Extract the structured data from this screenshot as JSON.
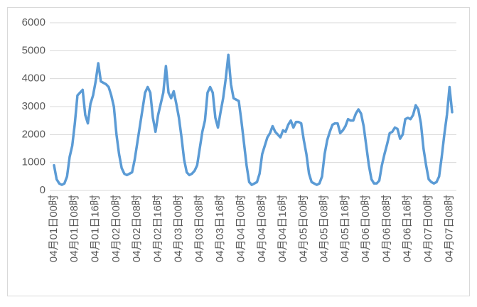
{
  "chart_data": {
    "type": "line",
    "categories": [
      "04月01日00时",
      null,
      null,
      null,
      null,
      null,
      null,
      null,
      "04月01日08时",
      null,
      null,
      null,
      null,
      null,
      null,
      null,
      "04月01日16时",
      null,
      null,
      null,
      null,
      null,
      null,
      null,
      "04月02日00时",
      null,
      null,
      null,
      null,
      null,
      null,
      null,
      "04月02日08时",
      null,
      null,
      null,
      null,
      null,
      null,
      null,
      "04月02日16时",
      null,
      null,
      null,
      null,
      null,
      null,
      null,
      "04月03日00时",
      null,
      null,
      null,
      null,
      null,
      null,
      null,
      "04月03日08时",
      null,
      null,
      null,
      null,
      null,
      null,
      null,
      "04月03日16时",
      null,
      null,
      null,
      null,
      null,
      null,
      null,
      "04月04日00时",
      null,
      null,
      null,
      null,
      null,
      null,
      null,
      "04月04日08时",
      null,
      null,
      null,
      null,
      null,
      null,
      null,
      "04月04日16时",
      null,
      null,
      null,
      null,
      null,
      null,
      null,
      "04月05日00时",
      null,
      null,
      null,
      null,
      null,
      null,
      null,
      "04月05日08时",
      null,
      null,
      null,
      null,
      null,
      null,
      null,
      "04月05日16时",
      null,
      null,
      null,
      null,
      null,
      null,
      null,
      "04月06日00时",
      null,
      null,
      null,
      null,
      null,
      null,
      null,
      "04月06日08时",
      null,
      null,
      null,
      null,
      null,
      null,
      null,
      "04月06日16时",
      null,
      null,
      null,
      null,
      null,
      null,
      null,
      "04月07日00时",
      null,
      null,
      null,
      null,
      null,
      null,
      null,
      "04月07日08时",
      null
    ],
    "values": [
      900,
      400,
      250,
      200,
      250,
      500,
      1200,
      1600,
      2400,
      3400,
      3500,
      3600,
      2700,
      2400,
      3100,
      3400,
      3900,
      4550,
      3900,
      3850,
      3800,
      3700,
      3400,
      3000,
      2000,
      1300,
      800,
      600,
      550,
      600,
      650,
      1100,
      1700,
      2300,
      2900,
      3500,
      3700,
      3500,
      2600,
      2100,
      2700,
      3100,
      3500,
      4450,
      3500,
      3300,
      3550,
      3100,
      2600,
      1900,
      1100,
      650,
      550,
      600,
      700,
      900,
      1500,
      2100,
      2500,
      3500,
      3700,
      3500,
      2600,
      2250,
      2800,
      3300,
      4000,
      4850,
      3800,
      3300,
      3250,
      3200,
      2500,
      1700,
      900,
      300,
      200,
      250,
      300,
      600,
      1300,
      1600,
      1900,
      2050,
      2300,
      2100,
      2000,
      1900,
      2150,
      2100,
      2350,
      2500,
      2250,
      2450,
      2450,
      2400,
      1800,
      1300,
      600,
      300,
      250,
      200,
      250,
      500,
      1300,
      1800,
      2100,
      2350,
      2400,
      2400,
      2050,
      2150,
      2300,
      2550,
      2500,
      2500,
      2750,
      2900,
      2750,
      2300,
      1600,
      900,
      400,
      250,
      250,
      350,
      900,
      1300,
      1650,
      2050,
      2100,
      2250,
      2200,
      1850,
      2000,
      2550,
      2600,
      2550,
      2700,
      3050,
      2900,
      2400,
      1500,
      900,
      400,
      300,
      250,
      300,
      500,
      1200,
      2000,
      2700,
      3700,
      2800
    ],
    "color": "#5b9bd5",
    "ylim": [
      0,
      6000
    ],
    "yticks": [
      0,
      1000,
      2000,
      3000,
      4000,
      5000,
      6000
    ],
    "grid": true
  }
}
